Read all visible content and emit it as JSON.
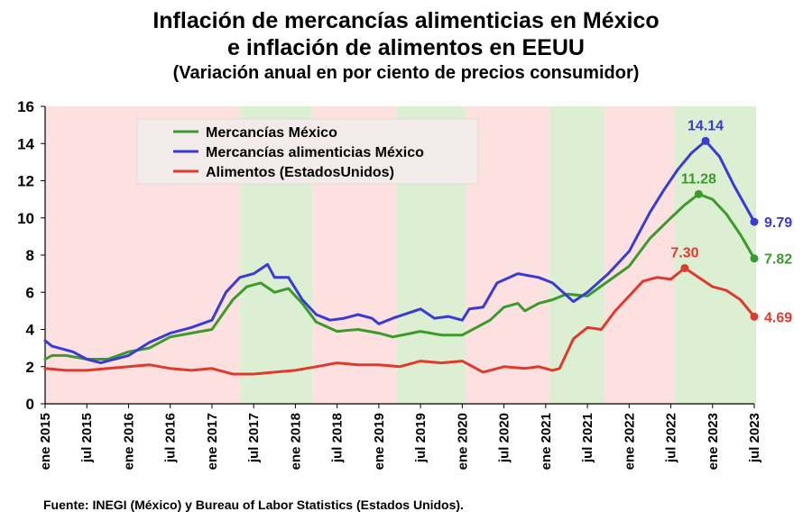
{
  "page": {
    "title_line1": "Inflación de mercancías alimenticias en México",
    "title_line2": "e inflación de alimentos en EEUU",
    "subtitle": "(Variación anual en por ciento de precios consumidor)",
    "source": "Fuente: INEGI (México) y Bureau of Labor Statistics (Estados Unidos)."
  },
  "chart_data": {
    "type": "line",
    "title": "Inflación de mercancías alimenticias en México e inflación de alimentos en EEUU",
    "subtitle": "(Variación anual en por ciento de precios consumidor)",
    "xlabel": "",
    "ylabel": "",
    "ylim": [
      0,
      16
    ],
    "yticks": [
      0,
      2,
      4,
      6,
      8,
      10,
      12,
      14,
      16
    ],
    "grid": false,
    "legend_position": "top-left",
    "x_ticks": [
      {
        "i": 0,
        "label": "ene 2015"
      },
      {
        "i": 6,
        "label": "jul 2015"
      },
      {
        "i": 12,
        "label": "ene 2016"
      },
      {
        "i": 18,
        "label": "jul 2016"
      },
      {
        "i": 24,
        "label": "ene 2017"
      },
      {
        "i": 30,
        "label": "jul 2017"
      },
      {
        "i": 36,
        "label": "ene 2018"
      },
      {
        "i": 42,
        "label": "jul 2018"
      },
      {
        "i": 48,
        "label": "ene 2019"
      },
      {
        "i": 54,
        "label": "jul 2019"
      },
      {
        "i": 60,
        "label": "ene 2020"
      },
      {
        "i": 66,
        "label": "jul 2020"
      },
      {
        "i": 72,
        "label": "ene 2021"
      },
      {
        "i": 78,
        "label": "jul 2021"
      },
      {
        "i": 84,
        "label": "ene 2022"
      },
      {
        "i": 90,
        "label": "jul 2022"
      },
      {
        "i": 96,
        "label": "ene 2023"
      },
      {
        "i": 102,
        "label": "jul 2023"
      }
    ],
    "x_max_index": 102,
    "background_bands": [
      {
        "from": 0,
        "to": 28,
        "color": "#fde0e0"
      },
      {
        "from": 28,
        "to": 38.5,
        "color": "#dcefd2"
      },
      {
        "from": 38.5,
        "to": 50.5,
        "color": "#fde0e0"
      },
      {
        "from": 50.5,
        "to": 60.5,
        "color": "#dcefd2"
      },
      {
        "from": 60.5,
        "to": 72.5,
        "color": "#fde0e0"
      },
      {
        "from": 72.5,
        "to": 80.5,
        "color": "#dcefd2"
      },
      {
        "from": 80.5,
        "to": 90.5,
        "color": "#fde0e0"
      },
      {
        "from": 90.5,
        "to": 102.3,
        "color": "#dcefd2"
      }
    ],
    "series": [
      {
        "name": "Mercancías México",
        "color": "#3a9a2c",
        "values": [
          [
            0,
            2.4
          ],
          [
            1,
            2.6
          ],
          [
            3,
            2.6
          ],
          [
            6,
            2.4
          ],
          [
            9,
            2.4
          ],
          [
            12,
            2.8
          ],
          [
            15,
            3.0
          ],
          [
            18,
            3.6
          ],
          [
            21,
            3.8
          ],
          [
            24,
            4.0
          ],
          [
            27,
            5.6
          ],
          [
            29,
            6.3
          ],
          [
            31,
            6.5
          ],
          [
            33,
            6.0
          ],
          [
            35,
            6.2
          ],
          [
            37,
            5.4
          ],
          [
            39,
            4.4
          ],
          [
            42,
            3.9
          ],
          [
            45,
            4.0
          ],
          [
            48,
            3.8
          ],
          [
            50,
            3.6
          ],
          [
            54,
            3.9
          ],
          [
            57,
            3.7
          ],
          [
            60,
            3.7
          ],
          [
            62,
            4.1
          ],
          [
            64,
            4.5
          ],
          [
            66,
            5.2
          ],
          [
            68,
            5.4
          ],
          [
            69,
            5.0
          ],
          [
            71,
            5.4
          ],
          [
            73,
            5.6
          ],
          [
            75,
            5.9
          ],
          [
            78,
            5.8
          ],
          [
            81,
            6.6
          ],
          [
            84,
            7.4
          ],
          [
            87,
            8.9
          ],
          [
            90,
            10.0
          ],
          [
            92,
            10.7
          ],
          [
            94,
            11.28
          ],
          [
            96,
            11.0
          ],
          [
            98,
            10.2
          ],
          [
            100,
            9.1
          ],
          [
            102,
            7.82
          ]
        ],
        "end_label": "7.82",
        "peak_label": "11.28",
        "peak_index": 94
      },
      {
        "name": "Mercancías alimenticias México",
        "color": "#3a3ad6",
        "values": [
          [
            0,
            3.4
          ],
          [
            1,
            3.1
          ],
          [
            4,
            2.8
          ],
          [
            6,
            2.4
          ],
          [
            8,
            2.2
          ],
          [
            12,
            2.6
          ],
          [
            15,
            3.3
          ],
          [
            18,
            3.8
          ],
          [
            21,
            4.1
          ],
          [
            24,
            4.5
          ],
          [
            26,
            6.0
          ],
          [
            28,
            6.8
          ],
          [
            30,
            7.0
          ],
          [
            32,
            7.5
          ],
          [
            33,
            6.8
          ],
          [
            35,
            6.8
          ],
          [
            37,
            5.6
          ],
          [
            39,
            4.8
          ],
          [
            41,
            4.5
          ],
          [
            43,
            4.6
          ],
          [
            45,
            4.8
          ],
          [
            47,
            4.6
          ],
          [
            48,
            4.3
          ],
          [
            50,
            4.6
          ],
          [
            54,
            5.1
          ],
          [
            56,
            4.6
          ],
          [
            58,
            4.7
          ],
          [
            60,
            4.5
          ],
          [
            61,
            5.1
          ],
          [
            63,
            5.2
          ],
          [
            65,
            6.5
          ],
          [
            68,
            7.0
          ],
          [
            71,
            6.8
          ],
          [
            73,
            6.5
          ],
          [
            76,
            5.5
          ],
          [
            78,
            6.0
          ],
          [
            81,
            7.0
          ],
          [
            84,
            8.2
          ],
          [
            87,
            10.3
          ],
          [
            89,
            11.5
          ],
          [
            91,
            12.6
          ],
          [
            93,
            13.5
          ],
          [
            95,
            14.14
          ],
          [
            97,
            13.3
          ],
          [
            99,
            11.8
          ],
          [
            102,
            9.79
          ]
        ],
        "end_label": "9.79",
        "peak_label": "14.14",
        "peak_index": 95
      },
      {
        "name": "Alimentos (EstadosUnidos)",
        "color": "#e03a2e",
        "values": [
          [
            0,
            1.9
          ],
          [
            3,
            1.8
          ],
          [
            6,
            1.8
          ],
          [
            9,
            1.9
          ],
          [
            12,
            2.0
          ],
          [
            15,
            2.1
          ],
          [
            18,
            1.9
          ],
          [
            21,
            1.8
          ],
          [
            24,
            1.9
          ],
          [
            27,
            1.6
          ],
          [
            30,
            1.6
          ],
          [
            33,
            1.7
          ],
          [
            36,
            1.8
          ],
          [
            39,
            2.0
          ],
          [
            42,
            2.2
          ],
          [
            45,
            2.1
          ],
          [
            48,
            2.1
          ],
          [
            51,
            2.0
          ],
          [
            54,
            2.3
          ],
          [
            57,
            2.2
          ],
          [
            60,
            2.3
          ],
          [
            63,
            1.7
          ],
          [
            66,
            2.0
          ],
          [
            69,
            1.9
          ],
          [
            71,
            2.0
          ],
          [
            73,
            1.8
          ],
          [
            74,
            1.9
          ],
          [
            76,
            3.5
          ],
          [
            78,
            4.1
          ],
          [
            80,
            4.0
          ],
          [
            82,
            5.0
          ],
          [
            84,
            5.8
          ],
          [
            86,
            6.6
          ],
          [
            88,
            6.8
          ],
          [
            90,
            6.7
          ],
          [
            92,
            7.3
          ],
          [
            94,
            6.8
          ],
          [
            96,
            6.3
          ],
          [
            98,
            6.1
          ],
          [
            100,
            5.6
          ],
          [
            102,
            4.69
          ]
        ],
        "end_label": "4.69",
        "peak_label": "7.30",
        "peak_index": 92
      }
    ]
  }
}
